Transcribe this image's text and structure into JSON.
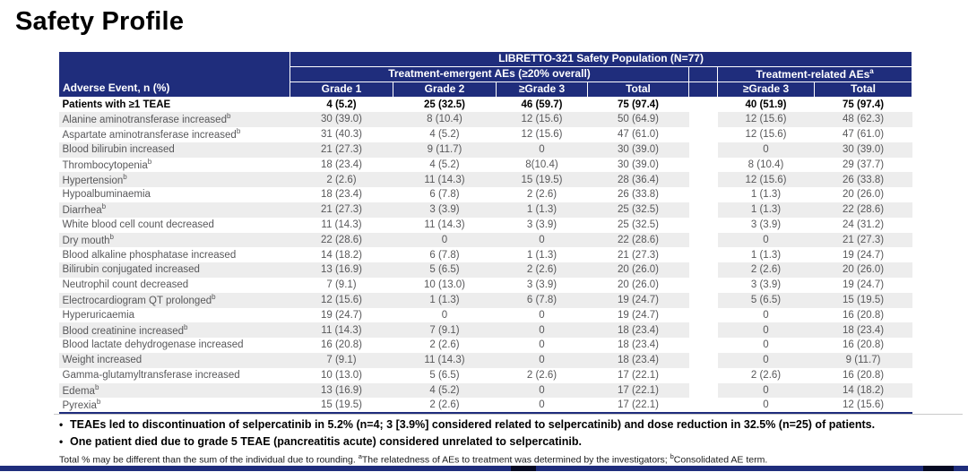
{
  "title": "Safety Profile",
  "table": {
    "population_header": "LIBRETTO-321 Safety Population (N=77)",
    "group_emergent": "Treatment-emergent AEs (≥20% overall)",
    "group_related": "Treatment-related AEs",
    "group_related_sup": "a",
    "event_col_header": "Adverse Event, n (%)",
    "emergent_cols": [
      "Grade 1",
      "Grade 2",
      "≥Grade 3",
      "Total"
    ],
    "related_cols": [
      "≥Grade 3",
      "Total"
    ],
    "rows": [
      {
        "event": "Patients with ≥1 TEAE",
        "sup": "",
        "values": [
          "4 (5.2)",
          "25 (32.5)",
          "46 (59.7)",
          "75 (97.4)",
          "40 (51.9)",
          "75 (97.4)"
        ]
      },
      {
        "event": "Alanine aminotransferase increased",
        "sup": "b",
        "values": [
          "30 (39.0)",
          "8 (10.4)",
          "12 (15.6)",
          "50 (64.9)",
          "12 (15.6)",
          "48 (62.3)"
        ]
      },
      {
        "event": "Aspartate aminotransferase increased",
        "sup": "b",
        "values": [
          "31 (40.3)",
          "4 (5.2)",
          "12 (15.6)",
          "47 (61.0)",
          "12 (15.6)",
          "47 (61.0)"
        ]
      },
      {
        "event": "Blood bilirubin increased",
        "sup": "",
        "values": [
          "21 (27.3)",
          "9 (11.7)",
          "0",
          "30 (39.0)",
          "0",
          "30 (39.0)"
        ]
      },
      {
        "event": "Thrombocytopenia",
        "sup": "b",
        "values": [
          "18 (23.4)",
          "4 (5.2)",
          "8(10.4)",
          "30 (39.0)",
          "8 (10.4)",
          "29 (37.7)"
        ]
      },
      {
        "event": "Hypertension",
        "sup": "b",
        "values": [
          "2 (2.6)",
          "11 (14.3)",
          "15 (19.5)",
          "28 (36.4)",
          "12 (15.6)",
          "26 (33.8)"
        ]
      },
      {
        "event": "Hypoalbuminaemia",
        "sup": "",
        "values": [
          "18 (23.4)",
          "6 (7.8)",
          "2 (2.6)",
          "26 (33.8)",
          "1 (1.3)",
          "20 (26.0)"
        ]
      },
      {
        "event": "Diarrhea",
        "sup": "b",
        "values": [
          "21 (27.3)",
          "3 (3.9)",
          "1 (1.3)",
          "25 (32.5)",
          "1 (1.3)",
          "22 (28.6)"
        ]
      },
      {
        "event": "White blood cell count decreased",
        "sup": "",
        "values": [
          "11 (14.3)",
          "11 (14.3)",
          "3 (3.9)",
          "25 (32.5)",
          "3 (3.9)",
          "24 (31.2)"
        ]
      },
      {
        "event": "Dry mouth",
        "sup": "b",
        "values": [
          "22 (28.6)",
          "0",
          "0",
          "22 (28.6)",
          "0",
          "21 (27.3)"
        ]
      },
      {
        "event": "Blood alkaline phosphatase increased",
        "sup": "",
        "values": [
          "14 (18.2)",
          "6 (7.8)",
          "1 (1.3)",
          "21 (27.3)",
          "1 (1.3)",
          "19 (24.7)"
        ]
      },
      {
        "event": "Bilirubin conjugated increased",
        "sup": "",
        "values": [
          "13 (16.9)",
          "5 (6.5)",
          "2 (2.6)",
          "20 (26.0)",
          "2 (2.6)",
          "20 (26.0)"
        ]
      },
      {
        "event": "Neutrophil count decreased",
        "sup": "",
        "values": [
          "7 (9.1)",
          "10 (13.0)",
          "3 (3.9)",
          "20 (26.0)",
          "3 (3.9)",
          "19 (24.7)"
        ]
      },
      {
        "event": "Electrocardiogram QT prolonged",
        "sup": "b",
        "values": [
          "12 (15.6)",
          "1 (1.3)",
          "6 (7.8)",
          "19 (24.7)",
          "5 (6.5)",
          "15 (19.5)"
        ]
      },
      {
        "event": "Hyperuricaemia",
        "sup": "",
        "values": [
          "19 (24.7)",
          "0",
          "0",
          "19 (24.7)",
          "0",
          "16 (20.8)"
        ]
      },
      {
        "event": "Blood creatinine increased",
        "sup": "b",
        "values": [
          "11 (14.3)",
          "7 (9.1)",
          "0",
          "18 (23.4)",
          "0",
          "18 (23.4)"
        ]
      },
      {
        "event": "Blood lactate dehydrogenase increased",
        "sup": "",
        "values": [
          "16 (20.8)",
          "2 (2.6)",
          "0",
          "18 (23.4)",
          "0",
          "16 (20.8)"
        ]
      },
      {
        "event": "Weight increased",
        "sup": "",
        "values": [
          "7 (9.1)",
          "11 (14.3)",
          "0",
          "18 (23.4)",
          "0",
          "9 (11.7)"
        ]
      },
      {
        "event": "Gamma-glutamyltransferase increased",
        "sup": "",
        "values": [
          "10 (13.0)",
          "5 (6.5)",
          "2 (2.6)",
          "17 (22.1)",
          "2 (2.6)",
          "16 (20.8)"
        ]
      },
      {
        "event": "Edema",
        "sup": "b",
        "values": [
          "13 (16.9)",
          "4 (5.2)",
          "0",
          "17 (22.1)",
          "0",
          "14 (18.2)"
        ]
      },
      {
        "event": "Pyrexia",
        "sup": "b",
        "values": [
          "15 (19.5)",
          "2 (2.6)",
          "0",
          "17 (22.1)",
          "0",
          "12 (15.6)"
        ]
      }
    ]
  },
  "bullet_marker": "•",
  "bullets": [
    "TEAEs led to discontinuation of selpercatinib in 5.2% (n=4; 3 [3.9%] considered related to selpercatinib) and dose reduction in 32.5% (n=25) of patients.",
    "One patient died due to grade 5 TEAE (pancreatitis acute) considered unrelated to selpercatinib."
  ],
  "footnote_segments": [
    {
      "t": "Total % may be different than the sum of the individual due to rounding. "
    },
    {
      "sup": "a"
    },
    {
      "t": "The relatedness of AEs to treatment was determined by the investigators; "
    },
    {
      "sup": "b"
    },
    {
      "t": "Consolidated AE term."
    }
  ],
  "colors": {
    "navy": "#1f2d7c",
    "stripe": "#ededed",
    "body_text": "#58585a"
  }
}
